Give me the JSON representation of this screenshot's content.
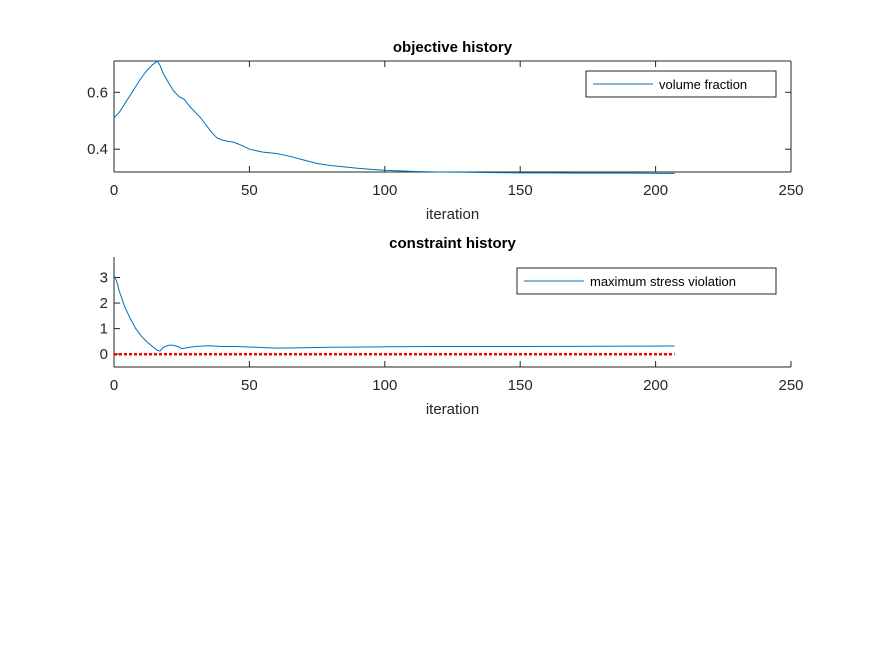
{
  "chart_data": [
    {
      "type": "line",
      "title": "objective history",
      "xlabel": "iteration",
      "ylabel": "",
      "xlim": [
        0,
        250
      ],
      "ylim": [
        0.32,
        0.71
      ],
      "xticks": [
        0,
        50,
        100,
        150,
        200,
        250
      ],
      "xtick_labels": [
        "0",
        "50",
        "100",
        "150",
        "200",
        "250"
      ],
      "yticks": [
        0.4,
        0.6
      ],
      "ytick_labels": [
        "0.4",
        "0.6"
      ],
      "grid": false,
      "legend_position": "top-right",
      "series": [
        {
          "name": "volume fraction",
          "color": "#0072bd",
          "x": [
            0,
            2,
            4,
            6,
            8,
            10,
            12,
            14,
            16,
            17,
            18,
            20,
            22,
            24,
            25,
            26,
            28,
            30,
            32,
            34,
            36,
            38,
            40,
            42,
            44,
            46,
            48,
            50,
            55,
            60,
            65,
            70,
            75,
            80,
            85,
            90,
            95,
            100,
            110,
            120,
            130,
            140,
            150,
            160,
            170,
            180,
            190,
            200,
            207
          ],
          "y": [
            0.51,
            0.53,
            0.56,
            0.59,
            0.62,
            0.65,
            0.675,
            0.695,
            0.71,
            0.695,
            0.67,
            0.635,
            0.605,
            0.585,
            0.58,
            0.575,
            0.55,
            0.53,
            0.51,
            0.485,
            0.46,
            0.44,
            0.432,
            0.428,
            0.425,
            0.418,
            0.41,
            0.4,
            0.39,
            0.385,
            0.375,
            0.362,
            0.35,
            0.343,
            0.338,
            0.333,
            0.329,
            0.326,
            0.322,
            0.32,
            0.319,
            0.318,
            0.317,
            0.317,
            0.316,
            0.316,
            0.316,
            0.315,
            0.315
          ]
        }
      ]
    },
    {
      "type": "line",
      "title": "constraint history",
      "xlabel": "iteration",
      "ylabel": "",
      "xlim": [
        0,
        250
      ],
      "ylim": [
        -0.5,
        3.8
      ],
      "xticks": [
        0,
        50,
        100,
        150,
        200,
        250
      ],
      "xtick_labels": [
        "0",
        "50",
        "100",
        "150",
        "200",
        "250"
      ],
      "yticks": [
        0,
        1,
        2,
        3
      ],
      "ytick_labels": [
        "0",
        "1",
        "2",
        "3"
      ],
      "grid": false,
      "legend_position": "top-right",
      "series": [
        {
          "name": "maximum stress violation",
          "color": "#0072bd",
          "x": [
            0,
            1,
            2,
            4,
            6,
            8,
            10,
            12,
            14,
            16,
            17,
            18,
            20,
            22,
            24,
            25,
            27,
            30,
            35,
            40,
            45,
            50,
            60,
            70,
            80,
            100,
            120,
            150,
            180,
            207
          ],
          "y": [
            3.1,
            2.85,
            2.45,
            1.85,
            1.4,
            1.0,
            0.72,
            0.5,
            0.32,
            0.15,
            0.12,
            0.25,
            0.35,
            0.35,
            0.28,
            0.22,
            0.25,
            0.3,
            0.33,
            0.3,
            0.3,
            0.28,
            0.24,
            0.25,
            0.27,
            0.29,
            0.3,
            0.3,
            0.31,
            0.32
          ]
        },
        {
          "name": "",
          "color": "#ff0000",
          "dashed": true,
          "x": [
            0,
            207
          ],
          "y": [
            0,
            0
          ]
        }
      ]
    }
  ]
}
